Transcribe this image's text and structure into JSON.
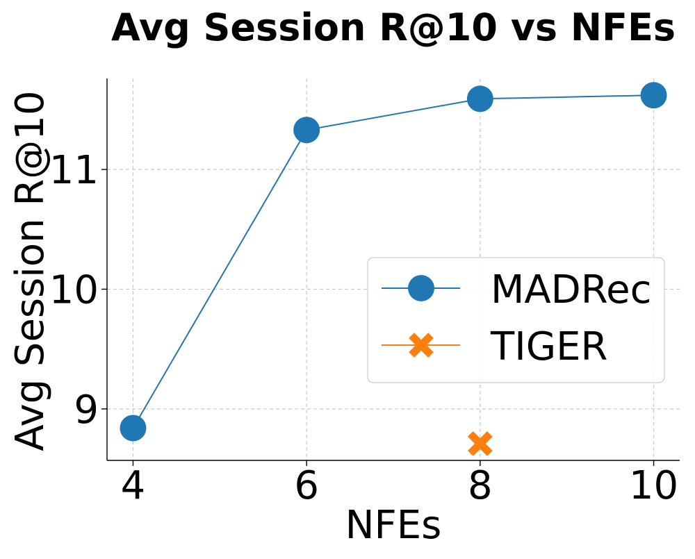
{
  "chart_data": {
    "type": "line",
    "title": "Avg Session R@10 vs NFEs",
    "xlabel": "NFEs",
    "ylabel": "Avg Session R@10",
    "x_ticks": [
      4,
      6,
      8,
      10
    ],
    "x_tick_labels": [
      "4",
      "6",
      "8",
      "10"
    ],
    "y_ticks": [
      9,
      10,
      11
    ],
    "y_tick_labels": [
      "9",
      "10",
      "11"
    ],
    "xlim": [
      3.7,
      10.3
    ],
    "ylim": [
      8.57,
      11.76
    ],
    "grid": true,
    "legend_position": "center-right",
    "series": [
      {
        "name": "MADRec",
        "color": "#1f77b4",
        "marker": "circle",
        "x": [
          4,
          6,
          8,
          10
        ],
        "values": [
          8.84,
          11.33,
          11.59,
          11.62
        ]
      },
      {
        "name": "TIGER",
        "color": "#ff7f0e",
        "marker": "x",
        "x": [
          8
        ],
        "values": [
          8.71
        ]
      }
    ]
  }
}
